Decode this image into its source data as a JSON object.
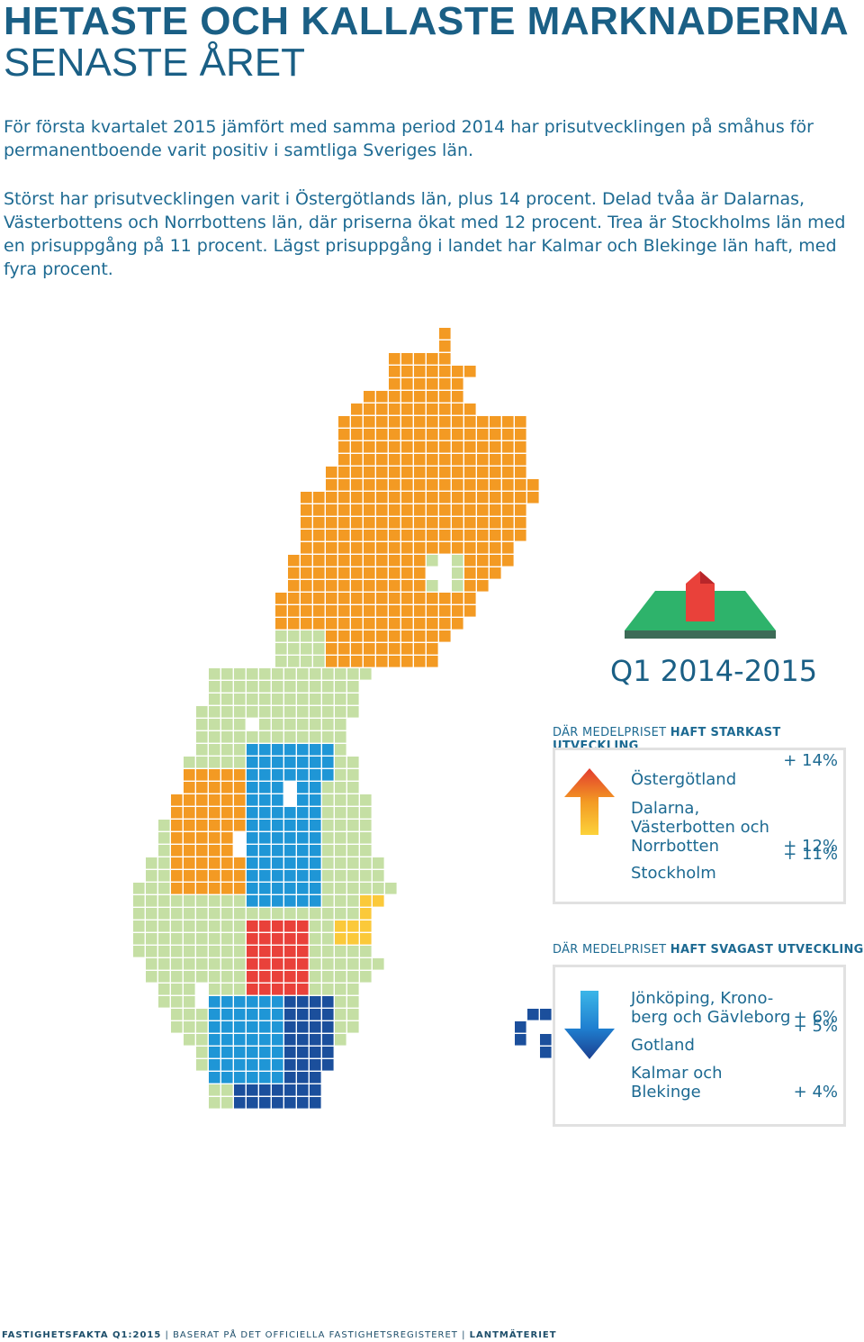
{
  "header": {
    "title_line1": "HETASTE OCH KALLASTE MARKNADERNA",
    "title_line2": "SENASTE ÅRET"
  },
  "intro": {
    "paragraph1": "För första kvartalet 2015 jämfört med samma period 2014 har prisutvecklingen på småhus för permanentboende varit positiv i samtliga Sveriges län.",
    "paragraph2": "Störst har prisutvecklingen varit i Östergötlands län, plus 14 procent. Delad tvåa är Dalarnas, Västerbottens och Norrbottens län, där priserna ökat med 12 procent. Trea är Stockholms län med en prisuppgång på 11 procent. Lägst prisuppgång i landet har Kalmar och Blekinge län haft, med fyra procent."
  },
  "period_label": "Q1 2014-2015",
  "strongest": {
    "heading_prefix": "DÄR MEDELPRISET ",
    "heading_bold": "HAFT STARKAST UTVECKLING",
    "items": [
      {
        "name": "Östergötland",
        "value": "+ 14%"
      },
      {
        "name": "Dalarna,\nVästerbotten och\nNorrbotten",
        "value": "+ 12%"
      },
      {
        "name": "Stockholm",
        "value": "+ 11%"
      }
    ]
  },
  "weakest": {
    "heading_prefix": "DÄR MEDELPRISET ",
    "heading_bold": "HAFT SVAGAST UTVECKLING",
    "items": [
      {
        "name": "Jönköping, Krono-\nberg och Gävleborg",
        "value": "+ 6%"
      },
      {
        "name": "Gotland",
        "value": "+ 5%"
      },
      {
        "name": "Kalmar och\nBlekinge",
        "value": "+ 4%"
      }
    ]
  },
  "colors": {
    "title": "#1a5f85",
    "orange": "#f39a23",
    "light_green": "#c5dfa4",
    "light_blue": "#1f96d6",
    "dark_blue": "#1b4f9c",
    "red": "#e9413a",
    "yellow": "#fbc93a"
  },
  "footer": {
    "part1": "FASTIGHETSFAKTA Q1:2015",
    "part2": "BASERAT PÅ DET OFFICIELLA FASTIGHETSREGISTERET",
    "part3": "LANTMÄTERIET"
  }
}
